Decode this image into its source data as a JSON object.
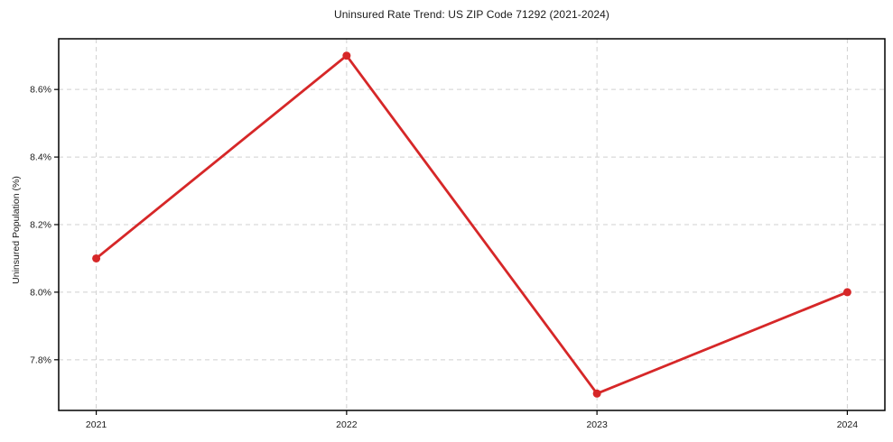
{
  "chart_data": {
    "type": "line",
    "title": "Uninsured Rate Trend: US ZIP Code 71292 (2021-2024)",
    "xlabel": "",
    "ylabel": "Uninsured Population (%)",
    "x": [
      2021,
      2022,
      2023,
      2024
    ],
    "x_tick_labels": [
      "2021",
      "2022",
      "2023",
      "2024"
    ],
    "series": [
      {
        "name": "Uninsured Rate",
        "values": [
          8.1,
          8.7,
          7.7,
          8.0
        ]
      }
    ],
    "y_ticks": [
      7.8,
      8.0,
      8.2,
      8.4,
      8.6
    ],
    "y_tick_labels": [
      "7.8%",
      "8.0%",
      "8.2%",
      "8.4%",
      "8.6%"
    ],
    "xlim": [
      2020.85,
      2024.15
    ],
    "ylim": [
      7.65,
      8.75
    ],
    "grid": true,
    "legend": false,
    "colors": {
      "line": "#d62728",
      "marker": "#d62728",
      "grid": "#d0d0d0",
      "spine": "#000000",
      "text": "#1a1a1a"
    }
  }
}
